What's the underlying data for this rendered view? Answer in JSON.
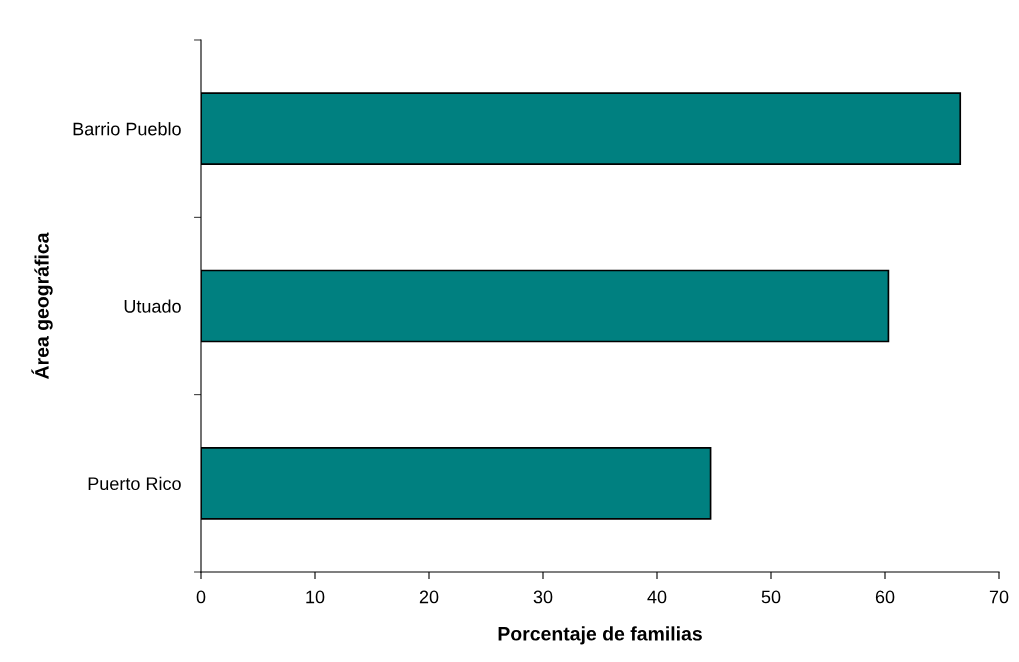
{
  "chart_data": {
    "type": "bar",
    "orientation": "horizontal",
    "xlabel": "Porcentaje de familias",
    "ylabel": "Área geográfica",
    "categories": [
      "Barrio Pueblo",
      "Utuado",
      "Puerto Rico"
    ],
    "values": [
      66.6,
      60.3,
      44.7
    ],
    "color": "#008080",
    "xlim": [
      0,
      70
    ],
    "xticks": [
      0,
      10,
      20,
      30,
      40,
      50,
      60,
      70
    ],
    "grid": false,
    "legend": false
  }
}
